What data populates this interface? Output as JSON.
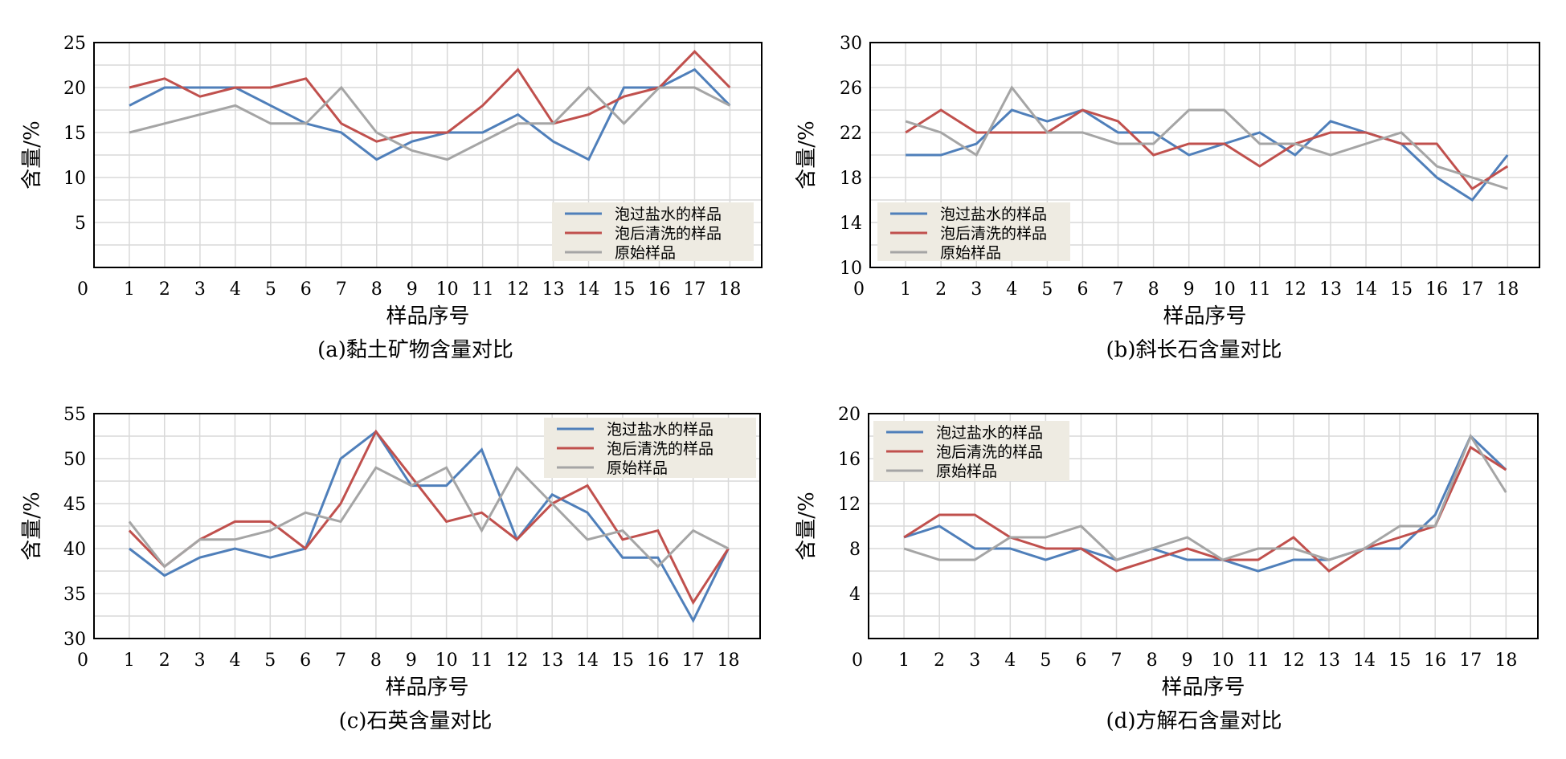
{
  "colors": {
    "series_1": "#4f7fba",
    "series_2": "#c0504d",
    "series_3": "#a5a5a5",
    "legend_bg": "#eeebe2",
    "grid": "#d9d9d9"
  },
  "chart_data": [
    {
      "type": "line",
      "caption": "(a)黏土矿物含量对比",
      "xlabel": "样品序号",
      "ylabel": "含量/%",
      "x_origin_label": "0",
      "categories": [
        "1",
        "2",
        "3",
        "4",
        "5",
        "6",
        "7",
        "8",
        "9",
        "10",
        "11",
        "12",
        "13",
        "14",
        "15",
        "16",
        "17",
        "18"
      ],
      "ylim": [
        0,
        25
      ],
      "yticks": [
        "5",
        "10",
        "15",
        "20",
        "25"
      ],
      "grid": true,
      "legend_position": "bottom-right",
      "series": [
        {
          "name": "泡过盐水的样品",
          "values": [
            18,
            20,
            20,
            20,
            18,
            16,
            15,
            12,
            14,
            15,
            15,
            17,
            14,
            12,
            20,
            20,
            22,
            18
          ]
        },
        {
          "name": "泡后清洗的样品",
          "values": [
            20,
            21,
            19,
            20,
            20,
            21,
            16,
            14,
            15,
            15,
            18,
            22,
            16,
            17,
            19,
            20,
            24,
            20
          ]
        },
        {
          "name": "原始样品",
          "values": [
            15,
            16,
            17,
            18,
            16,
            16,
            20,
            15,
            13,
            12,
            14,
            16,
            16,
            20,
            16,
            20,
            20,
            18
          ]
        }
      ]
    },
    {
      "type": "line",
      "caption": "(b)斜长石含量对比",
      "xlabel": "样品序号",
      "ylabel": "含量/%",
      "x_origin_label": "0",
      "categories": [
        "1",
        "2",
        "3",
        "4",
        "5",
        "6",
        "7",
        "8",
        "9",
        "10",
        "11",
        "12",
        "13",
        "14",
        "15",
        "16",
        "17",
        "18"
      ],
      "ylim": [
        10,
        30
      ],
      "yticks": [
        "10",
        "14",
        "18",
        "22",
        "26",
        "30"
      ],
      "grid": true,
      "legend_position": "bottom-left",
      "series": [
        {
          "name": "泡过盐水的样品",
          "values": [
            20,
            20,
            21,
            24,
            23,
            24,
            22,
            22,
            20,
            21,
            22,
            20,
            23,
            22,
            21,
            18,
            16,
            20
          ]
        },
        {
          "name": "泡后清洗的样品",
          "values": [
            22,
            24,
            22,
            22,
            22,
            24,
            23,
            20,
            21,
            21,
            19,
            21,
            22,
            22,
            21,
            21,
            17,
            19
          ]
        },
        {
          "name": "原始样品",
          "values": [
            23,
            22,
            20,
            26,
            22,
            22,
            21,
            21,
            24,
            24,
            21,
            21,
            20,
            21,
            22,
            19,
            18,
            17
          ]
        }
      ]
    },
    {
      "type": "line",
      "caption": "(c)石英含量对比",
      "xlabel": "样品序号",
      "ylabel": "含量/%",
      "x_origin_label": "0",
      "categories": [
        "1",
        "2",
        "3",
        "4",
        "5",
        "6",
        "7",
        "8",
        "9",
        "10",
        "11",
        "12",
        "13",
        "14",
        "15",
        "16",
        "17",
        "18"
      ],
      "ylim": [
        30,
        55
      ],
      "yticks": [
        "30",
        "35",
        "40",
        "45",
        "50",
        "55"
      ],
      "grid": true,
      "legend_position": "top-right",
      "series": [
        {
          "name": "泡过盐水的样品",
          "values": [
            40,
            37,
            39,
            40,
            39,
            40,
            50,
            53,
            47,
            47,
            51,
            41,
            46,
            44,
            39,
            39,
            32,
            40
          ]
        },
        {
          "name": "泡后清洗的样品",
          "values": [
            42,
            38,
            41,
            43,
            43,
            40,
            45,
            53,
            48,
            43,
            44,
            41,
            45,
            47,
            41,
            42,
            34,
            40
          ]
        },
        {
          "name": "原始样品",
          "values": [
            43,
            38,
            41,
            41,
            42,
            44,
            43,
            49,
            47,
            49,
            42,
            49,
            45,
            41,
            42,
            38,
            42,
            40
          ]
        }
      ]
    },
    {
      "type": "line",
      "caption": "(d)方解石含量对比",
      "xlabel": "样品序号",
      "ylabel": "含量/%",
      "x_origin_label": "0",
      "categories": [
        "1",
        "2",
        "3",
        "4",
        "5",
        "6",
        "7",
        "8",
        "9",
        "10",
        "11",
        "12",
        "13",
        "14",
        "15",
        "16",
        "17",
        "18"
      ],
      "ylim": [
        0,
        20
      ],
      "yticks": [
        "4",
        "8",
        "12",
        "16",
        "20"
      ],
      "grid": true,
      "legend_position": "top-left",
      "series": [
        {
          "name": "泡过盐水的样品",
          "values": [
            9,
            10,
            8,
            8,
            7,
            8,
            7,
            8,
            7,
            7,
            6,
            7,
            7,
            8,
            8,
            11,
            18,
            15
          ]
        },
        {
          "name": "泡后清洗的样品",
          "values": [
            9,
            11,
            11,
            9,
            8,
            8,
            6,
            7,
            8,
            7,
            7,
            9,
            6,
            8,
            9,
            10,
            17,
            15
          ]
        },
        {
          "name": "原始样品",
          "values": [
            8,
            7,
            7,
            9,
            9,
            10,
            7,
            8,
            9,
            7,
            8,
            8,
            7,
            8,
            10,
            10,
            18,
            13
          ]
        }
      ]
    }
  ]
}
